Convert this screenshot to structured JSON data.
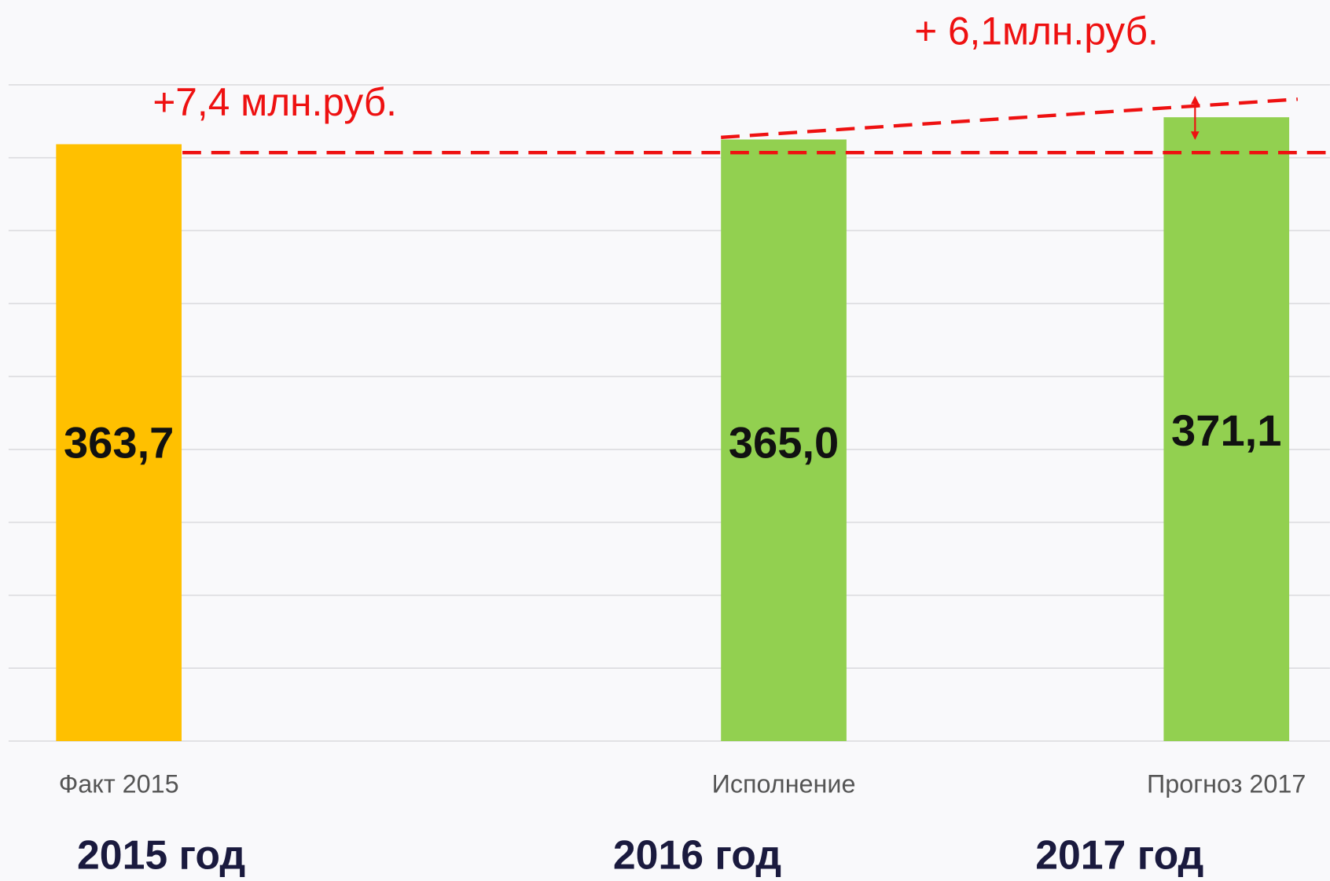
{
  "chart_data": {
    "type": "bar",
    "categories": [
      "Факт 2015",
      "Исполнение",
      "Прогноз 2017"
    ],
    "groups": [
      "2015 год",
      "2016 год",
      "2017 год"
    ],
    "values": [
      363.7,
      365.0,
      371.1
    ],
    "value_labels": [
      "363,7",
      "365,0",
      "371,1"
    ],
    "colors": [
      "#ffc000",
      "#92d050",
      "#92d050"
    ],
    "annotations": [
      "+7,4 млн.руб.",
      "+ 6,1млн.руб."
    ],
    "ylim": [
      200,
      380
    ],
    "yticks": [
      200,
      220,
      240,
      260,
      280,
      300,
      320,
      340,
      360,
      380
    ],
    "grid": true
  }
}
